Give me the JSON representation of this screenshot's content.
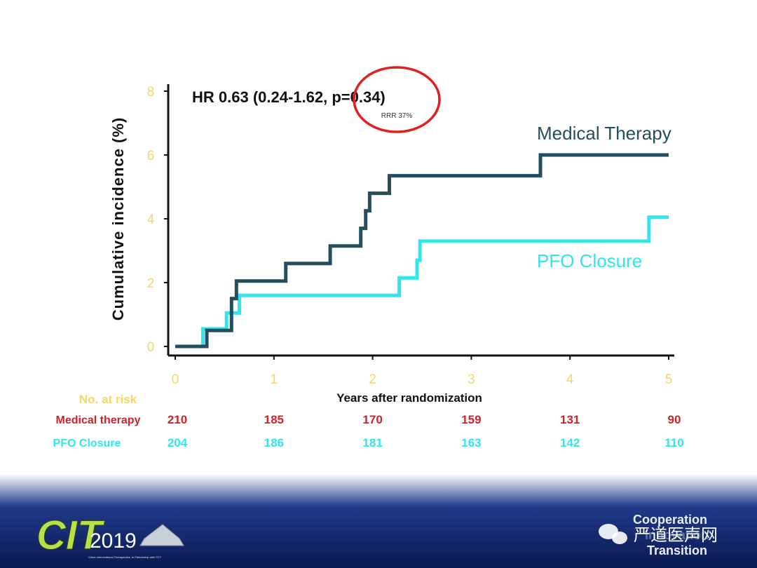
{
  "chart_data": {
    "type": "line",
    "step": true,
    "annotation": "HR 0.63 (0.24-1.62, p=0.34)",
    "sub_annotation": "RRR 37%",
    "ylabel": "Cumulative incidence (%)",
    "xlabel": "Years after randomization",
    "xlim": [
      0,
      5
    ],
    "ylim": [
      0,
      8
    ],
    "x_ticks": [
      "0",
      "1",
      "2",
      "3",
      "4",
      "5"
    ],
    "y_ticks": [
      "0",
      "2",
      "4",
      "6",
      "8"
    ],
    "series": [
      {
        "name": "Medical Therapy",
        "color": "#244f5c",
        "points": [
          [
            0,
            0
          ],
          [
            0.32,
            0
          ],
          [
            0.32,
            0.5
          ],
          [
            0.57,
            0.5
          ],
          [
            0.57,
            1.5
          ],
          [
            0.62,
            1.5
          ],
          [
            0.62,
            2.05
          ],
          [
            1.12,
            2.05
          ],
          [
            1.12,
            2.6
          ],
          [
            1.57,
            2.6
          ],
          [
            1.57,
            3.15
          ],
          [
            1.88,
            3.15
          ],
          [
            1.88,
            3.7
          ],
          [
            1.93,
            3.7
          ],
          [
            1.93,
            4.25
          ],
          [
            1.97,
            4.25
          ],
          [
            1.97,
            4.8
          ],
          [
            2.17,
            4.8
          ],
          [
            2.17,
            5.35
          ],
          [
            3.7,
            5.35
          ],
          [
            3.7,
            6.0
          ],
          [
            5.0,
            6.0
          ]
        ]
      },
      {
        "name": "PFO Closure",
        "color": "#2ee6ee",
        "points": [
          [
            0,
            0
          ],
          [
            0.28,
            0
          ],
          [
            0.28,
            0.55
          ],
          [
            0.52,
            0.55
          ],
          [
            0.52,
            1.05
          ],
          [
            0.65,
            1.05
          ],
          [
            0.65,
            1.6
          ],
          [
            2.27,
            1.6
          ],
          [
            2.27,
            2.15
          ],
          [
            2.45,
            2.15
          ],
          [
            2.45,
            2.7
          ],
          [
            2.48,
            2.7
          ],
          [
            2.48,
            3.3
          ],
          [
            4.8,
            3.3
          ],
          [
            4.8,
            4.05
          ],
          [
            5.0,
            4.05
          ]
        ]
      }
    ]
  },
  "risk_table": {
    "title": "No. at risk",
    "rows": [
      {
        "label": "Medical therapy",
        "color": "#d0222a",
        "values": [
          "210",
          "185",
          "170",
          "159",
          "131",
          "90"
        ]
      },
      {
        "label": "PFO Closure",
        "color": "#2ee6ee",
        "values": [
          "204",
          "186",
          "181",
          "163",
          "142",
          "110"
        ]
      }
    ]
  },
  "colors": {
    "axis": "#111111",
    "tick_label": "#f4d66a",
    "risk_header": "#f4d66a",
    "highlight_circle": "#e0201f",
    "footer_dark": "#0c1c57"
  },
  "footer": {
    "logo_text": "CIT",
    "logo_year": "2019",
    "logo_subtitle": "China Interventional Therapeutics, in Partnership with TCT",
    "tagline": [
      "Cooperation",
      "Innovation",
      "Transition"
    ],
    "watermark": "严道医声网"
  }
}
